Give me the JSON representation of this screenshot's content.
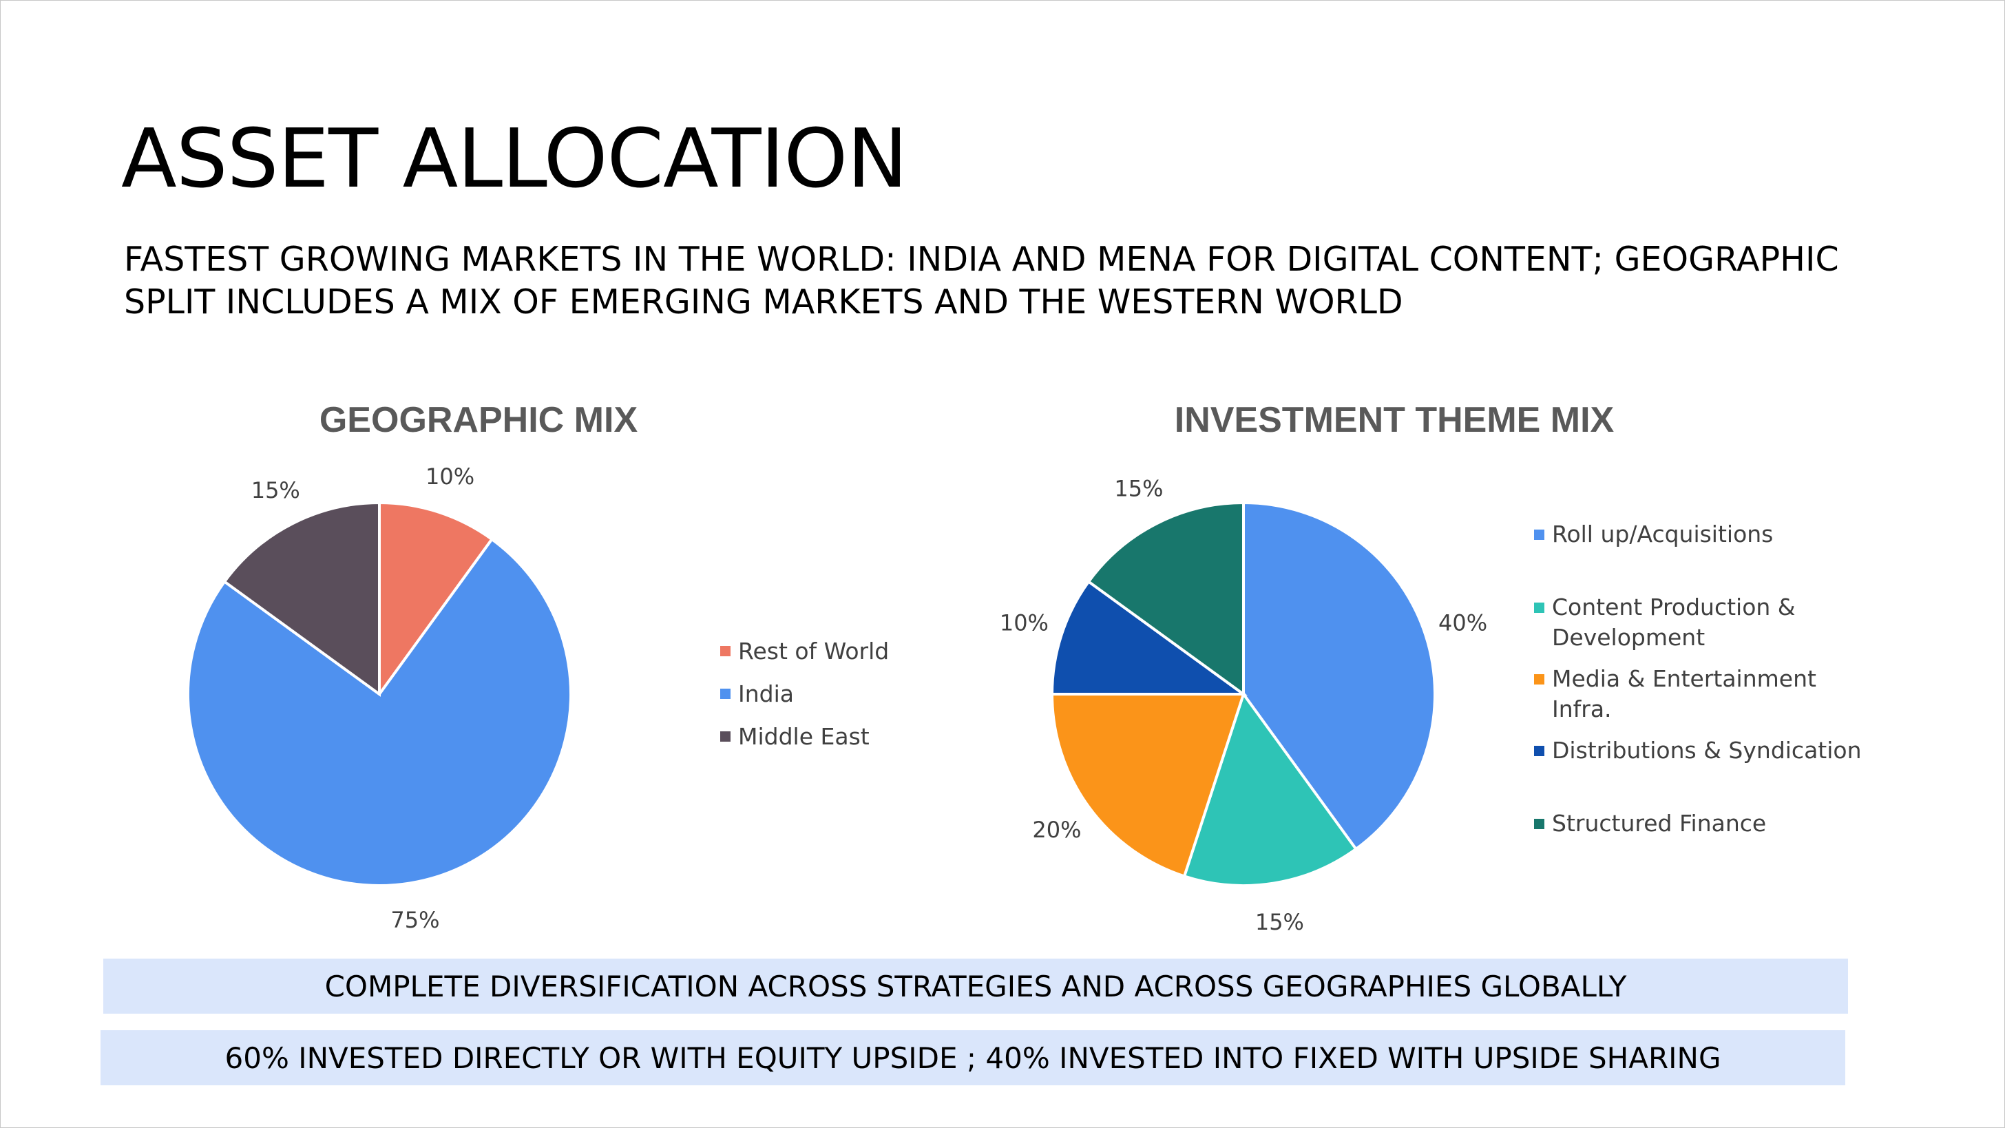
{
  "title": "ASSET ALLOCATION",
  "subtitle": "FASTEST GROWING MARKETS IN THE WORLD: INDIA AND MENA FOR DIGITAL CONTENT; GEOGRAPHIC SPLIT INCLUDES A MIX OF EMERGING MARKETS AND THE WESTERN WORLD",
  "chart_data": [
    {
      "type": "pie",
      "title": "GEOGRAPHIC MIX",
      "legend_position": "right",
      "start_angle": "12 o'clock, clockwise",
      "slices": [
        {
          "label": "Rest of World",
          "value": 10,
          "display": "10%",
          "color": "#ee7762"
        },
        {
          "label": "India",
          "value": 75,
          "display": "75%",
          "color": "#4f91ef"
        },
        {
          "label": "Middle East",
          "value": 15,
          "display": "15%",
          "color": "#5a4e5b"
        }
      ]
    },
    {
      "type": "pie",
      "title": "INVESTMENT THEME MIX",
      "legend_position": "right",
      "start_angle": "12 o'clock, clockwise",
      "slices": [
        {
          "label": "Roll up/Acquisitions",
          "value": 40,
          "display": "40%",
          "color": "#4f91ef"
        },
        {
          "label": "Content Production & Development",
          "value": 15,
          "display": "15%",
          "color": "#2ec4b6"
        },
        {
          "label": "Media & Entertainment Infra.",
          "value": 20,
          "display": "20%",
          "color": "#fb9419"
        },
        {
          "label": "Distributions & Syndication",
          "value": 10,
          "display": "10%",
          "color": "#0f4fae"
        },
        {
          "label": "Structured Finance",
          "value": 15,
          "display": "15%",
          "color": "#18776c"
        }
      ]
    }
  ],
  "banners": [
    "COMPLETE DIVERSIFICATION ACROSS STRATEGIES AND ACROSS GEOGRAPHIES GLOBALLY",
    "60% INVESTED DIRECTLY OR WITH EQUITY UPSIDE ; 40% INVESTED INTO FIXED WITH UPSIDE SHARING"
  ]
}
